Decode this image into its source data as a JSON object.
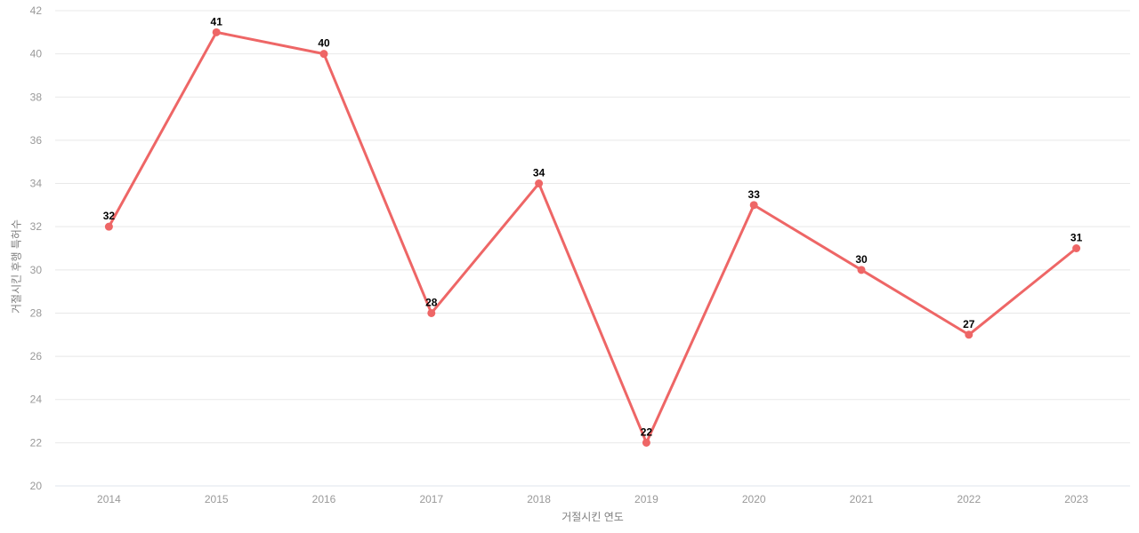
{
  "chart_data": {
    "type": "line",
    "title": "",
    "categories": [
      "2014",
      "2015",
      "2016",
      "2017",
      "2018",
      "2019",
      "2020",
      "2021",
      "2022",
      "2023"
    ],
    "values": [
      32,
      41,
      40,
      28,
      34,
      22,
      33,
      30,
      27,
      31
    ],
    "xlabel": "거절시킨 연도",
    "ylabel": "거절시킨 후행 특허수",
    "ylim": [
      20,
      42
    ],
    "ytick_step": 2,
    "grid": true,
    "legend": "none",
    "data_labels_visible": true,
    "colors": {
      "line": "#ee6666",
      "marker": "#ee6666",
      "data_label": "#000000",
      "tick_label": "#999999",
      "axis_title": "#7f7f7f",
      "gridline": "#e8e8e8",
      "axis_line": "#dfe4ee",
      "background": "#ffffff"
    }
  }
}
